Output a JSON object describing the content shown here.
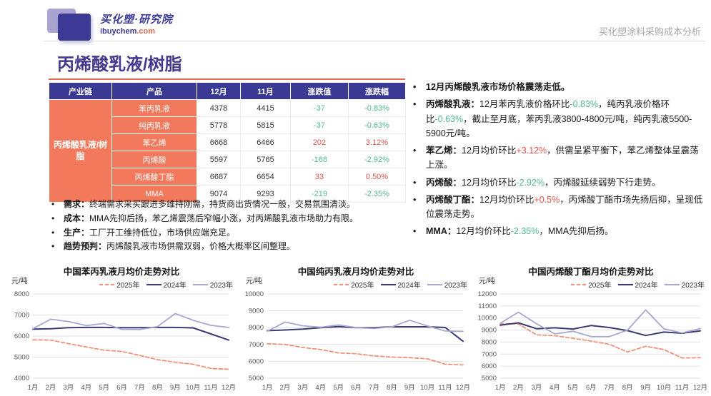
{
  "header": {
    "logo_title": "买化塑·研究院",
    "logo_domain": "ibuychem",
    "logo_tld": ".com",
    "right_text": "买化塑涂料采购成本分析"
  },
  "page_title": "丙烯酸乳液/树脂",
  "colors": {
    "brand": "#3d3a96",
    "table_header_bg": "#3a3a94",
    "table_accent_bg": "#f2795c",
    "accent_underline": "#e06a58",
    "positive": "#e0534e",
    "negative": "#53b98d"
  },
  "table": {
    "headers": [
      "产业链",
      "产品",
      "12月",
      "11月",
      "涨跌值",
      "涨跌幅"
    ],
    "chain_label": "丙烯酸乳液/树脂",
    "rows": [
      {
        "product": "苯丙乳液",
        "dec": "4378",
        "nov": "4415",
        "change": "-37",
        "pct": "-0.83%",
        "trend": "down"
      },
      {
        "product": "纯丙乳液",
        "dec": "5778",
        "nov": "5815",
        "change": "-37",
        "pct": "-0.63%",
        "trend": "down"
      },
      {
        "product": "苯乙烯",
        "dec": "6668",
        "nov": "6466",
        "change": "202",
        "pct": "3.12%",
        "trend": "up"
      },
      {
        "product": "丙烯酸",
        "dec": "5597",
        "nov": "5765",
        "change": "-168",
        "pct": "-2.92%",
        "trend": "down"
      },
      {
        "product": "丙烯酸丁酯",
        "dec": "6687",
        "nov": "6654",
        "change": "33",
        "pct": "0.50%",
        "trend": "up"
      },
      {
        "product": "MMA",
        "dec": "9074",
        "nov": "9293",
        "change": "-219",
        "pct": "-2.35%",
        "trend": "down"
      }
    ]
  },
  "left_bullets": [
    {
      "label": "需求：",
      "text": "终端需求采买跟进多维持刚需，持货商出货情况一般，交易氛围清淡。"
    },
    {
      "label": "成本：",
      "text": "MMA先抑后扬，苯乙烯震荡后窄幅小涨，对丙烯酸乳液市场助力有限。"
    },
    {
      "label": "生产：",
      "text": "工厂开工维持低位，市场供应端充足。"
    },
    {
      "label": "趋势预判：",
      "text": "丙烯酸乳液市场供需双弱，价格大概率区间整理。"
    }
  ],
  "right_bullets": [
    {
      "label": "",
      "bold": true,
      "segments": [
        {
          "text": "12月丙烯酸乳液市场价格震荡走低。",
          "color": null
        }
      ]
    },
    {
      "label": "丙烯酸乳液：",
      "bold": false,
      "segments": [
        {
          "text": "12月苯丙乳液价格环比",
          "color": null
        },
        {
          "text": "-0.83%",
          "color": "negative"
        },
        {
          "text": "，纯丙乳液价格环比",
          "color": null
        },
        {
          "text": "-0.63%",
          "color": "negative"
        },
        {
          "text": "，截止至月底，苯丙乳液3800-4800元/吨，纯丙乳液5500-5900元/吨。",
          "color": null
        }
      ]
    },
    {
      "label": "苯乙烯：",
      "bold": false,
      "segments": [
        {
          "text": "12月均价环比",
          "color": null
        },
        {
          "text": "+3.12%",
          "color": "positive"
        },
        {
          "text": "，供需呈紧平衡下，苯乙烯整体呈震荡上涨。",
          "color": null
        }
      ]
    },
    {
      "label": "丙烯酸：",
      "bold": false,
      "segments": [
        {
          "text": "12月均价环比",
          "color": null
        },
        {
          "text": "-2.92%",
          "color": "negative"
        },
        {
          "text": "，丙烯酸延续弱势下行走势。",
          "color": null
        }
      ]
    },
    {
      "label": "丙烯酸丁酯：",
      "bold": false,
      "segments": [
        {
          "text": "12月均价环比",
          "color": null
        },
        {
          "text": "+0.5%",
          "color": "positive"
        },
        {
          "text": "，丙烯酸丁酯市场先扬后抑，呈现低位震荡走势。",
          "color": null
        }
      ]
    },
    {
      "label": "MMA：",
      "bold": false,
      "segments": [
        {
          "text": "12月均价环比",
          "color": null
        },
        {
          "text": "-2.35%",
          "color": "negative"
        },
        {
          "text": "，MMA先抑后扬。",
          "color": null
        }
      ]
    }
  ],
  "chart_data": [
    {
      "type": "line",
      "title": "中国苯丙乳液月均价走势对比",
      "ylabel": "元/吨",
      "ylim": [
        4000,
        8000
      ],
      "ytick": 1000,
      "grid": true,
      "legend_position": "top",
      "categories": [
        "1月",
        "2月",
        "3月",
        "4月",
        "5月",
        "6月",
        "7月",
        "8月",
        "9月",
        "10月",
        "11月",
        "12月"
      ],
      "series": [
        {
          "name": "2025年",
          "color": "#ef9278",
          "style": "dashed",
          "values": [
            5820,
            5810,
            5640,
            5480,
            5330,
            5270,
            5080,
            4880,
            4760,
            4660,
            4460,
            4420
          ]
        },
        {
          "name": "2024年",
          "color": "#3b3b72",
          "style": "solid",
          "values": [
            6330,
            6350,
            6400,
            6410,
            6410,
            6400,
            6400,
            6410,
            6410,
            6390,
            6100,
            5810
          ]
        },
        {
          "name": "2023年",
          "color": "#a7a7d0",
          "style": "solid",
          "values": [
            6350,
            6800,
            6690,
            6500,
            6600,
            6320,
            6310,
            6450,
            7070,
            6750,
            6510,
            6410
          ]
        }
      ]
    },
    {
      "type": "line",
      "title": "中国纯丙乳液月均价走势对比",
      "ylabel": "元/吨",
      "ylim": [
        5000,
        10000
      ],
      "ytick": 1000,
      "grid": true,
      "legend_position": "top",
      "categories": [
        "1月",
        "2月",
        "3月",
        "4月",
        "5月",
        "6月",
        "7月",
        "8月",
        "9月",
        "10月",
        "11月",
        "12月"
      ],
      "series": [
        {
          "name": "2025年",
          "color": "#ef9278",
          "style": "dashed",
          "values": [
            7050,
            7000,
            6820,
            6700,
            6500,
            6450,
            6320,
            6250,
            6220,
            6150,
            5830,
            5790
          ]
        },
        {
          "name": "2024年",
          "color": "#3b3b72",
          "style": "solid",
          "values": [
            7820,
            7860,
            7910,
            8000,
            8060,
            8000,
            8000,
            8050,
            8050,
            8050,
            8010,
            7190
          ]
        },
        {
          "name": "2023年",
          "color": "#a7a7d0",
          "style": "solid",
          "values": [
            7790,
            8330,
            8110,
            8020,
            8160,
            8000,
            7950,
            8050,
            8440,
            8100,
            7800,
            7780
          ]
        }
      ]
    },
    {
      "type": "line",
      "title": "中国丙烯酸丁酯月均价走势对比",
      "ylabel": "元/吨",
      "ylim": [
        5000,
        12000
      ],
      "ytick": 1000,
      "grid": true,
      "legend_position": "top",
      "categories": [
        "1月",
        "2月",
        "3月",
        "4月",
        "5月",
        "6月",
        "7月",
        "8月",
        "9月",
        "10月",
        "11月",
        "12月"
      ],
      "series": [
        {
          "name": "2025年",
          "color": "#ef9278",
          "style": "dashed",
          "values": [
            9530,
            9500,
            8600,
            8530,
            8320,
            8080,
            7820,
            7180,
            7650,
            7380,
            6680,
            6700
          ]
        },
        {
          "name": "2024年",
          "color": "#3b3b72",
          "style": "solid",
          "values": [
            9400,
            9600,
            9110,
            9190,
            9090,
            9380,
            9210,
            8950,
            8550,
            8830,
            8740,
            8930
          ]
        },
        {
          "name": "2023年",
          "color": "#a7a7d0",
          "style": "solid",
          "values": [
            9560,
            10490,
            9520,
            8680,
            8900,
            8450,
            8450,
            9000,
            10680,
            9100,
            8760,
            9120
          ]
        }
      ]
    }
  ]
}
